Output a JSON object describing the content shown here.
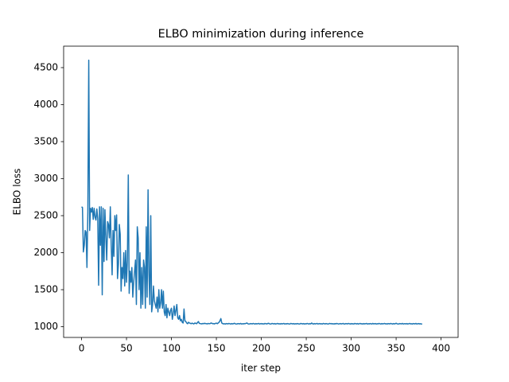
{
  "chart_data": {
    "type": "line",
    "title": "ELBO minimization during inference",
    "xlabel": "iter step",
    "ylabel": "ELBO loss",
    "color": "#1f77b4",
    "xlim": [
      -19.95,
      418.95
    ],
    "xticks": [
      0,
      50,
      100,
      150,
      200,
      250,
      300,
      350,
      400
    ],
    "ylim": [
      855,
      4790
    ],
    "yticks": [
      1000,
      1500,
      2000,
      2500,
      3000,
      3500,
      4000,
      4500
    ],
    "values": [
      2620,
      2610,
      2010,
      2100,
      2300,
      2280,
      1800,
      2550,
      4600,
      2300,
      2600,
      2550,
      2610,
      2450,
      2600,
      2480,
      2440,
      2590,
      2460,
      1560,
      2620,
      2100,
      2620,
      1430,
      2600,
      1880,
      2580,
      2200,
      1900,
      2420,
      2380,
      2200,
      2620,
      2100,
      1700,
      2300,
      1950,
      2500,
      2300,
      2510,
      1650,
      1840,
      2380,
      2250,
      1480,
      1800,
      1650,
      2000,
      1550,
      2030,
      1600,
      1900,
      3050,
      1450,
      1750,
      1600,
      1800,
      1400,
      1600,
      1750,
      1900,
      1300,
      2350,
      2200,
      1500,
      2000,
      1250,
      1800,
      1300,
      1900,
      1800,
      1250,
      2350,
      1400,
      2850,
      1700,
      1300,
      2500,
      1200,
      1300,
      1550,
      1350,
      1300,
      1250,
      1400,
      1200,
      1500,
      1250,
      1320,
      1500,
      1250,
      1480,
      1200,
      1150,
      1300,
      1120,
      1250,
      1200,
      1150,
      1220,
      1250,
      1100,
      1180,
      1280,
      1150,
      1220,
      1300,
      1120,
      1100,
      1150,
      1080,
      1100,
      1060,
      1050,
      1240,
      1080,
      1070,
      1050,
      1040,
      1060,
      1050,
      1045,
      1040,
      1048,
      1042,
      1038,
      1050,
      1046,
      1040,
      1055,
      1070,
      1045,
      1042,
      1040,
      1038,
      1044,
      1040,
      1046,
      1042,
      1040,
      1038,
      1044,
      1040,
      1042,
      1050,
      1046,
      1040,
      1042,
      1038,
      1045,
      1048,
      1040,
      1050,
      1060,
      1080,
      1110,
      1050,
      1042,
      1038,
      1040,
      1036,
      1042,
      1040,
      1038,
      1044,
      1040,
      1036,
      1042,
      1038,
      1040,
      1046,
      1040,
      1036,
      1038,
      1042,
      1040,
      1038,
      1044,
      1036,
      1040,
      1038,
      1042,
      1040,
      1045,
      1050,
      1040,
      1036,
      1038,
      1042,
      1040,
      1038,
      1044,
      1040,
      1036,
      1042,
      1038,
      1040,
      1044,
      1036,
      1040,
      1042,
      1038,
      1040,
      1036,
      1044,
      1040,
      1038,
      1042,
      1046,
      1040,
      1036,
      1038,
      1044,
      1040,
      1038,
      1042,
      1036,
      1040,
      1044,
      1038,
      1040,
      1036,
      1042,
      1038,
      1040,
      1044,
      1036,
      1040,
      1038,
      1042,
      1040,
      1036,
      1038,
      1044,
      1040,
      1038,
      1042,
      1036,
      1040,
      1038,
      1042,
      1040,
      1036,
      1038,
      1044,
      1040,
      1038,
      1042,
      1036,
      1040,
      1038,
      1044,
      1040,
      1036,
      1042,
      1038,
      1050,
      1040,
      1036,
      1042,
      1038,
      1040,
      1044,
      1036,
      1040,
      1042,
      1038,
      1040,
      1036,
      1044,
      1040,
      1038,
      1042,
      1040,
      1036,
      1038,
      1044,
      1040,
      1042,
      1038,
      1040,
      1036,
      1042,
      1038,
      1044,
      1040,
      1036,
      1040,
      1042,
      1038,
      1040,
      1044,
      1036,
      1038,
      1042,
      1040,
      1038,
      1044,
      1040,
      1036,
      1042,
      1038,
      1040,
      1036,
      1044,
      1040,
      1038,
      1042,
      1036,
      1040,
      1044,
      1038,
      1040,
      1036,
      1042,
      1038,
      1040,
      1044,
      1036,
      1040,
      1038,
      1042,
      1040,
      1036,
      1044,
      1038,
      1040,
      1042,
      1036,
      1040,
      1038,
      1044,
      1040,
      1036,
      1042,
      1038,
      1040,
      1044,
      1038,
      1040,
      1036,
      1042,
      1040,
      1038,
      1044,
      1040,
      1036,
      1042,
      1038,
      1040,
      1046,
      1040,
      1036,
      1038,
      1042,
      1040,
      1038,
      1044,
      1036,
      1040,
      1040,
      1038,
      1042,
      1036,
      1040,
      1044,
      1038,
      1040,
      1036,
      1042,
      1040,
      1038,
      1044,
      1036,
      1040,
      1042,
      1038,
      1040,
      1036,
      1038
    ]
  }
}
